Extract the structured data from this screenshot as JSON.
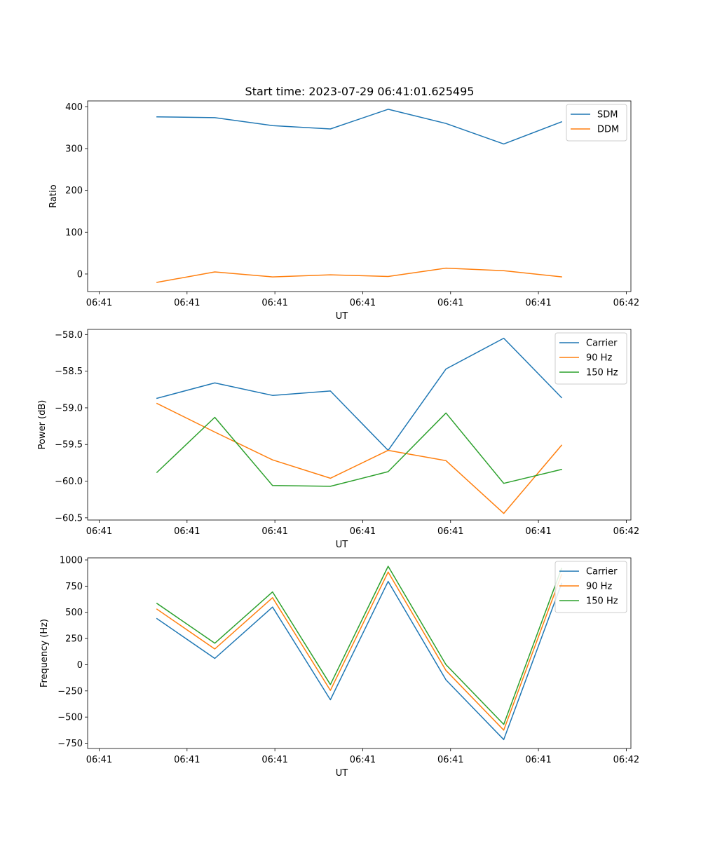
{
  "title": "Start time: 2023-07-29 06:41:01.625495",
  "colors": {
    "blue": "#1f77b4",
    "orange": "#ff7f0e",
    "green": "#2ca02c"
  },
  "chart_data": [
    {
      "type": "line",
      "xlabel": "UT",
      "ylabel": "Ratio",
      "x": [
        0.5,
        1,
        1.5,
        2,
        2.5,
        3,
        3.5,
        4
      ],
      "xlim": [
        -0.1,
        4.6
      ],
      "xticks": [
        0,
        0.76,
        1.52,
        2.28,
        3.04,
        3.8,
        4.56
      ],
      "xtick_labels": [
        "06:41",
        "06:41",
        "06:41",
        "06:41",
        "06:41",
        "06:41",
        "06:42"
      ],
      "ylim": [
        -42,
        414
      ],
      "yticks": [
        0,
        100,
        200,
        300,
        400
      ],
      "ytick_labels": [
        "0",
        "100",
        "200",
        "300",
        "400"
      ],
      "legend_position": "top-right",
      "series": [
        {
          "name": "SDM",
          "color": "#1f77b4",
          "values": [
            376,
            374,
            355,
            347,
            394,
            360,
            311,
            364
          ]
        },
        {
          "name": "DDM",
          "color": "#ff7f0e",
          "values": [
            -20,
            5,
            -7,
            -2,
            -6,
            14,
            8,
            -7
          ]
        }
      ]
    },
    {
      "type": "line",
      "xlabel": "UT",
      "ylabel": "Power (dB)",
      "x": [
        0.5,
        1,
        1.5,
        2,
        2.5,
        3,
        3.5,
        4
      ],
      "xlim": [
        -0.1,
        4.6
      ],
      "xticks": [
        0,
        0.76,
        1.52,
        2.28,
        3.04,
        3.8,
        4.56
      ],
      "xtick_labels": [
        "06:41",
        "06:41",
        "06:41",
        "06:41",
        "06:41",
        "06:41",
        "06:42"
      ],
      "ylim": [
        -60.53,
        -57.93
      ],
      "yticks": [
        -58.0,
        -58.5,
        -59.0,
        -59.5,
        -60.0,
        -60.5
      ],
      "ytick_labels": [
        "−58.0",
        "−58.5",
        "−59.0",
        "−59.5",
        "−60.0",
        "−60.5"
      ],
      "legend_position": "top-right",
      "series": [
        {
          "name": "Carrier",
          "color": "#1f77b4",
          "values": [
            -58.87,
            -58.66,
            -58.83,
            -58.77,
            -59.58,
            -58.47,
            -58.05,
            -58.86
          ]
        },
        {
          "name": "90 Hz",
          "color": "#ff7f0e",
          "values": [
            -58.94,
            -59.33,
            -59.71,
            -59.96,
            -59.58,
            -59.72,
            -60.44,
            -59.51
          ]
        },
        {
          "name": "150 Hz",
          "color": "#2ca02c",
          "values": [
            -59.88,
            -59.13,
            -60.06,
            -60.07,
            -59.87,
            -59.07,
            -60.03,
            -59.84
          ]
        }
      ]
    },
    {
      "type": "line",
      "xlabel": "UT",
      "ylabel": "Frequency (Hz)",
      "x": [
        0.5,
        1,
        1.5,
        2,
        2.5,
        3,
        3.5,
        4
      ],
      "xlim": [
        -0.1,
        4.6
      ],
      "xticks": [
        0,
        0.76,
        1.52,
        2.28,
        3.04,
        3.8,
        4.56
      ],
      "xtick_labels": [
        "06:41",
        "06:41",
        "06:41",
        "06:41",
        "06:41",
        "06:41",
        "06:42"
      ],
      "ylim": [
        -800,
        1020
      ],
      "yticks": [
        1000,
        750,
        500,
        250,
        0,
        -250,
        -500,
        -750
      ],
      "ytick_labels": [
        "1000",
        "750",
        "500",
        "250",
        "0",
        "−250",
        "−500",
        "−750"
      ],
      "legend_position": "top-right",
      "series": [
        {
          "name": "Carrier",
          "color": "#1f77b4",
          "values": [
            440,
            60,
            550,
            -335,
            795,
            -145,
            -715,
            775
          ]
        },
        {
          "name": "90 Hz",
          "color": "#ff7f0e",
          "values": [
            530,
            150,
            640,
            -245,
            885,
            -55,
            -625,
            860
          ]
        },
        {
          "name": "150 Hz",
          "color": "#2ca02c",
          "values": [
            585,
            205,
            695,
            -190,
            940,
            0,
            -570,
            920
          ]
        }
      ]
    }
  ]
}
